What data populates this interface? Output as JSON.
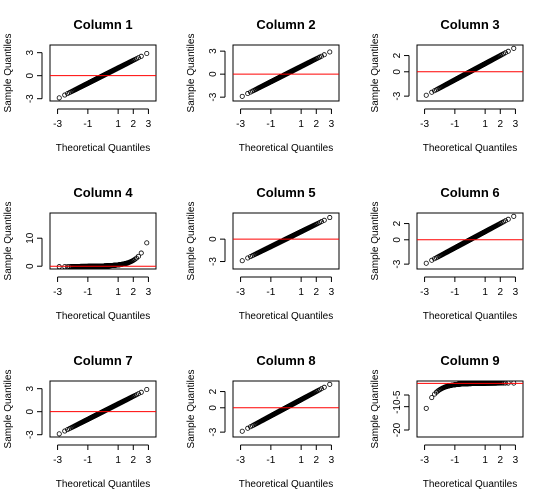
{
  "chart_data": [
    {
      "type": "scatter",
      "title": "Column 1",
      "xlabel": "Theoretical Quantiles",
      "ylabel": "Sample Quantiles",
      "xlim": [
        -3.5,
        3.5
      ],
      "ylim": [
        -3.3,
        4.0
      ],
      "xticks": [
        "-3",
        "-1",
        "1",
        "2",
        "3"
      ],
      "yticks": [
        "-3",
        "0",
        "3"
      ],
      "shape": "linear",
      "refline": 0
    },
    {
      "type": "scatter",
      "title": "Column 2",
      "xlabel": "Theoretical Quantiles",
      "ylabel": "Sample Quantiles",
      "xlim": [
        -3.5,
        3.5
      ],
      "ylim": [
        -3.5,
        3.8
      ],
      "xticks": [
        "-3",
        "-1",
        "1",
        "2",
        "3"
      ],
      "yticks": [
        "-3",
        "0",
        "3"
      ],
      "shape": "linear",
      "refline": 0
    },
    {
      "type": "scatter",
      "title": "Column 3",
      "xlabel": "Theoretical Quantiles",
      "ylabel": "Sample Quantiles",
      "xlim": [
        -3.5,
        3.5
      ],
      "ylim": [
        -3.6,
        3.3
      ],
      "xticks": [
        "-3",
        "-1",
        "1",
        "2",
        "3"
      ],
      "yticks": [
        "-3",
        "0",
        "2"
      ],
      "shape": "linear",
      "refline": 0
    },
    {
      "type": "scatter",
      "title": "Column 4",
      "xlabel": "Theoretical Quantiles",
      "ylabel": "Sample Quantiles",
      "xlim": [
        -3.5,
        3.5
      ],
      "ylim": [
        -1,
        19
      ],
      "xticks": [
        "-3",
        "-1",
        "1",
        "2",
        "3"
      ],
      "yticks": [
        "0",
        "10"
      ],
      "shape": "convex",
      "refline": 0
    },
    {
      "type": "scatter",
      "title": "Column 5",
      "xlabel": "Theoretical Quantiles",
      "ylabel": "Sample Quantiles",
      "xlim": [
        -3.5,
        3.5
      ],
      "ylim": [
        -4.0,
        3.5
      ],
      "xticks": [
        "-3",
        "-1",
        "1",
        "2",
        "3"
      ],
      "yticks": [
        "-3",
        "0"
      ],
      "shape": "linear",
      "refline": 0
    },
    {
      "type": "scatter",
      "title": "Column 6",
      "xlabel": "Theoretical Quantiles",
      "ylabel": "Sample Quantiles",
      "xlim": [
        -3.5,
        3.5
      ],
      "ylim": [
        -3.6,
        3.3
      ],
      "xticks": [
        "-3",
        "-1",
        "1",
        "2",
        "3"
      ],
      "yticks": [
        "-3",
        "0",
        "2"
      ],
      "shape": "linear",
      "refline": 0
    },
    {
      "type": "scatter",
      "title": "Column 7",
      "xlabel": "Theoretical Quantiles",
      "ylabel": "Sample Quantiles",
      "xlim": [
        -3.5,
        3.5
      ],
      "ylim": [
        -3.3,
        4.0
      ],
      "xticks": [
        "-3",
        "-1",
        "1",
        "2",
        "3"
      ],
      "yticks": [
        "-3",
        "0",
        "3"
      ],
      "shape": "linear",
      "refline": 0
    },
    {
      "type": "scatter",
      "title": "Column 8",
      "xlabel": "Theoretical Quantiles",
      "ylabel": "Sample Quantiles",
      "xlim": [
        -3.5,
        3.5
      ],
      "ylim": [
        -3.6,
        3.3
      ],
      "xticks": [
        "-3",
        "-1",
        "1",
        "2",
        "3"
      ],
      "yticks": [
        "-3",
        "0",
        "2"
      ],
      "shape": "linear",
      "refline": 0
    },
    {
      "type": "scatter",
      "title": "Column 9",
      "xlabel": "Theoretical Quantiles",
      "ylabel": "Sample Quantiles",
      "xlim": [
        -3.5,
        3.5
      ],
      "ylim": [
        -23,
        1
      ],
      "xticks": [
        "-3",
        "-1",
        "1",
        "2",
        "3"
      ],
      "yticks": [
        "-20",
        "-10",
        "-5"
      ],
      "shape": "concave",
      "refline": 0
    }
  ]
}
